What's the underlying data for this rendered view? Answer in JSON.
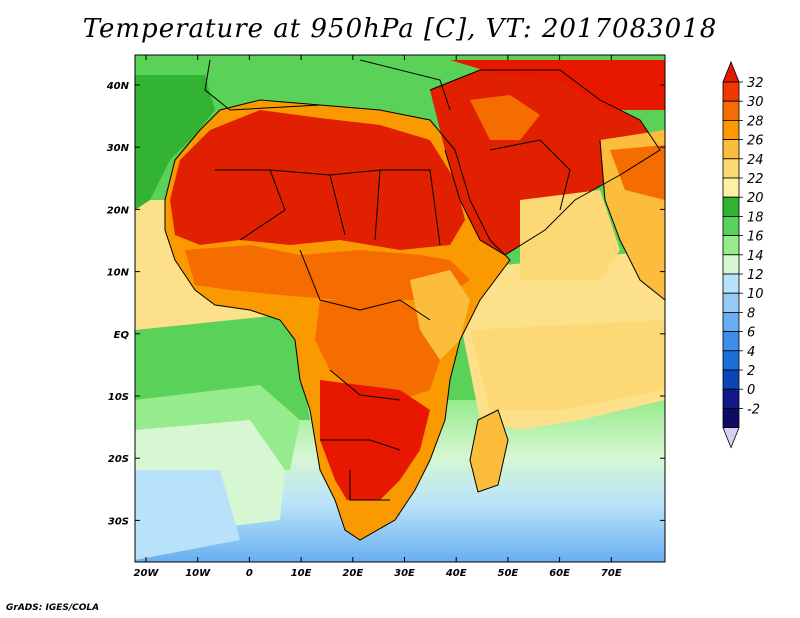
{
  "title": "Temperature at 950hPa [C], VT: 2017083018",
  "credit": "GrADS: IGES/COLA",
  "map": {
    "lon_labels": [
      "20W",
      "10W",
      "0",
      "10E",
      "20E",
      "30E",
      "40E",
      "50E",
      "60E",
      "70E"
    ],
    "lat_labels": [
      "40N",
      "30N",
      "20N",
      "10N",
      "EQ",
      "10S",
      "20S",
      "30S"
    ],
    "region": "Africa, Arabian Peninsula and Indian Ocean"
  },
  "colorbar": {
    "labels": [
      "32",
      "30",
      "28",
      "26",
      "24",
      "22",
      "20",
      "18",
      "16",
      "14",
      "12",
      "10",
      "8",
      "6",
      "4",
      "2",
      "0",
      "-2"
    ],
    "colors": [
      "#e81800",
      "#f03800",
      "#f56d00",
      "#fa9900",
      "#fcbc3c",
      "#fcd974",
      "#fdf2a2",
      "#32b432",
      "#5ad25a",
      "#96eb8c",
      "#d6f7d2",
      "#b8e2fa",
      "#95cbf4",
      "#69aef0",
      "#3d8ee8",
      "#1a6fd8",
      "#0a46b8",
      "#10188a",
      "#0c0c62",
      "#d8d0f4"
    ]
  },
  "colors": {
    "ocean_warm": "#fce08a",
    "land_hot": "#e02000",
    "sea_cool": "#46c546"
  }
}
